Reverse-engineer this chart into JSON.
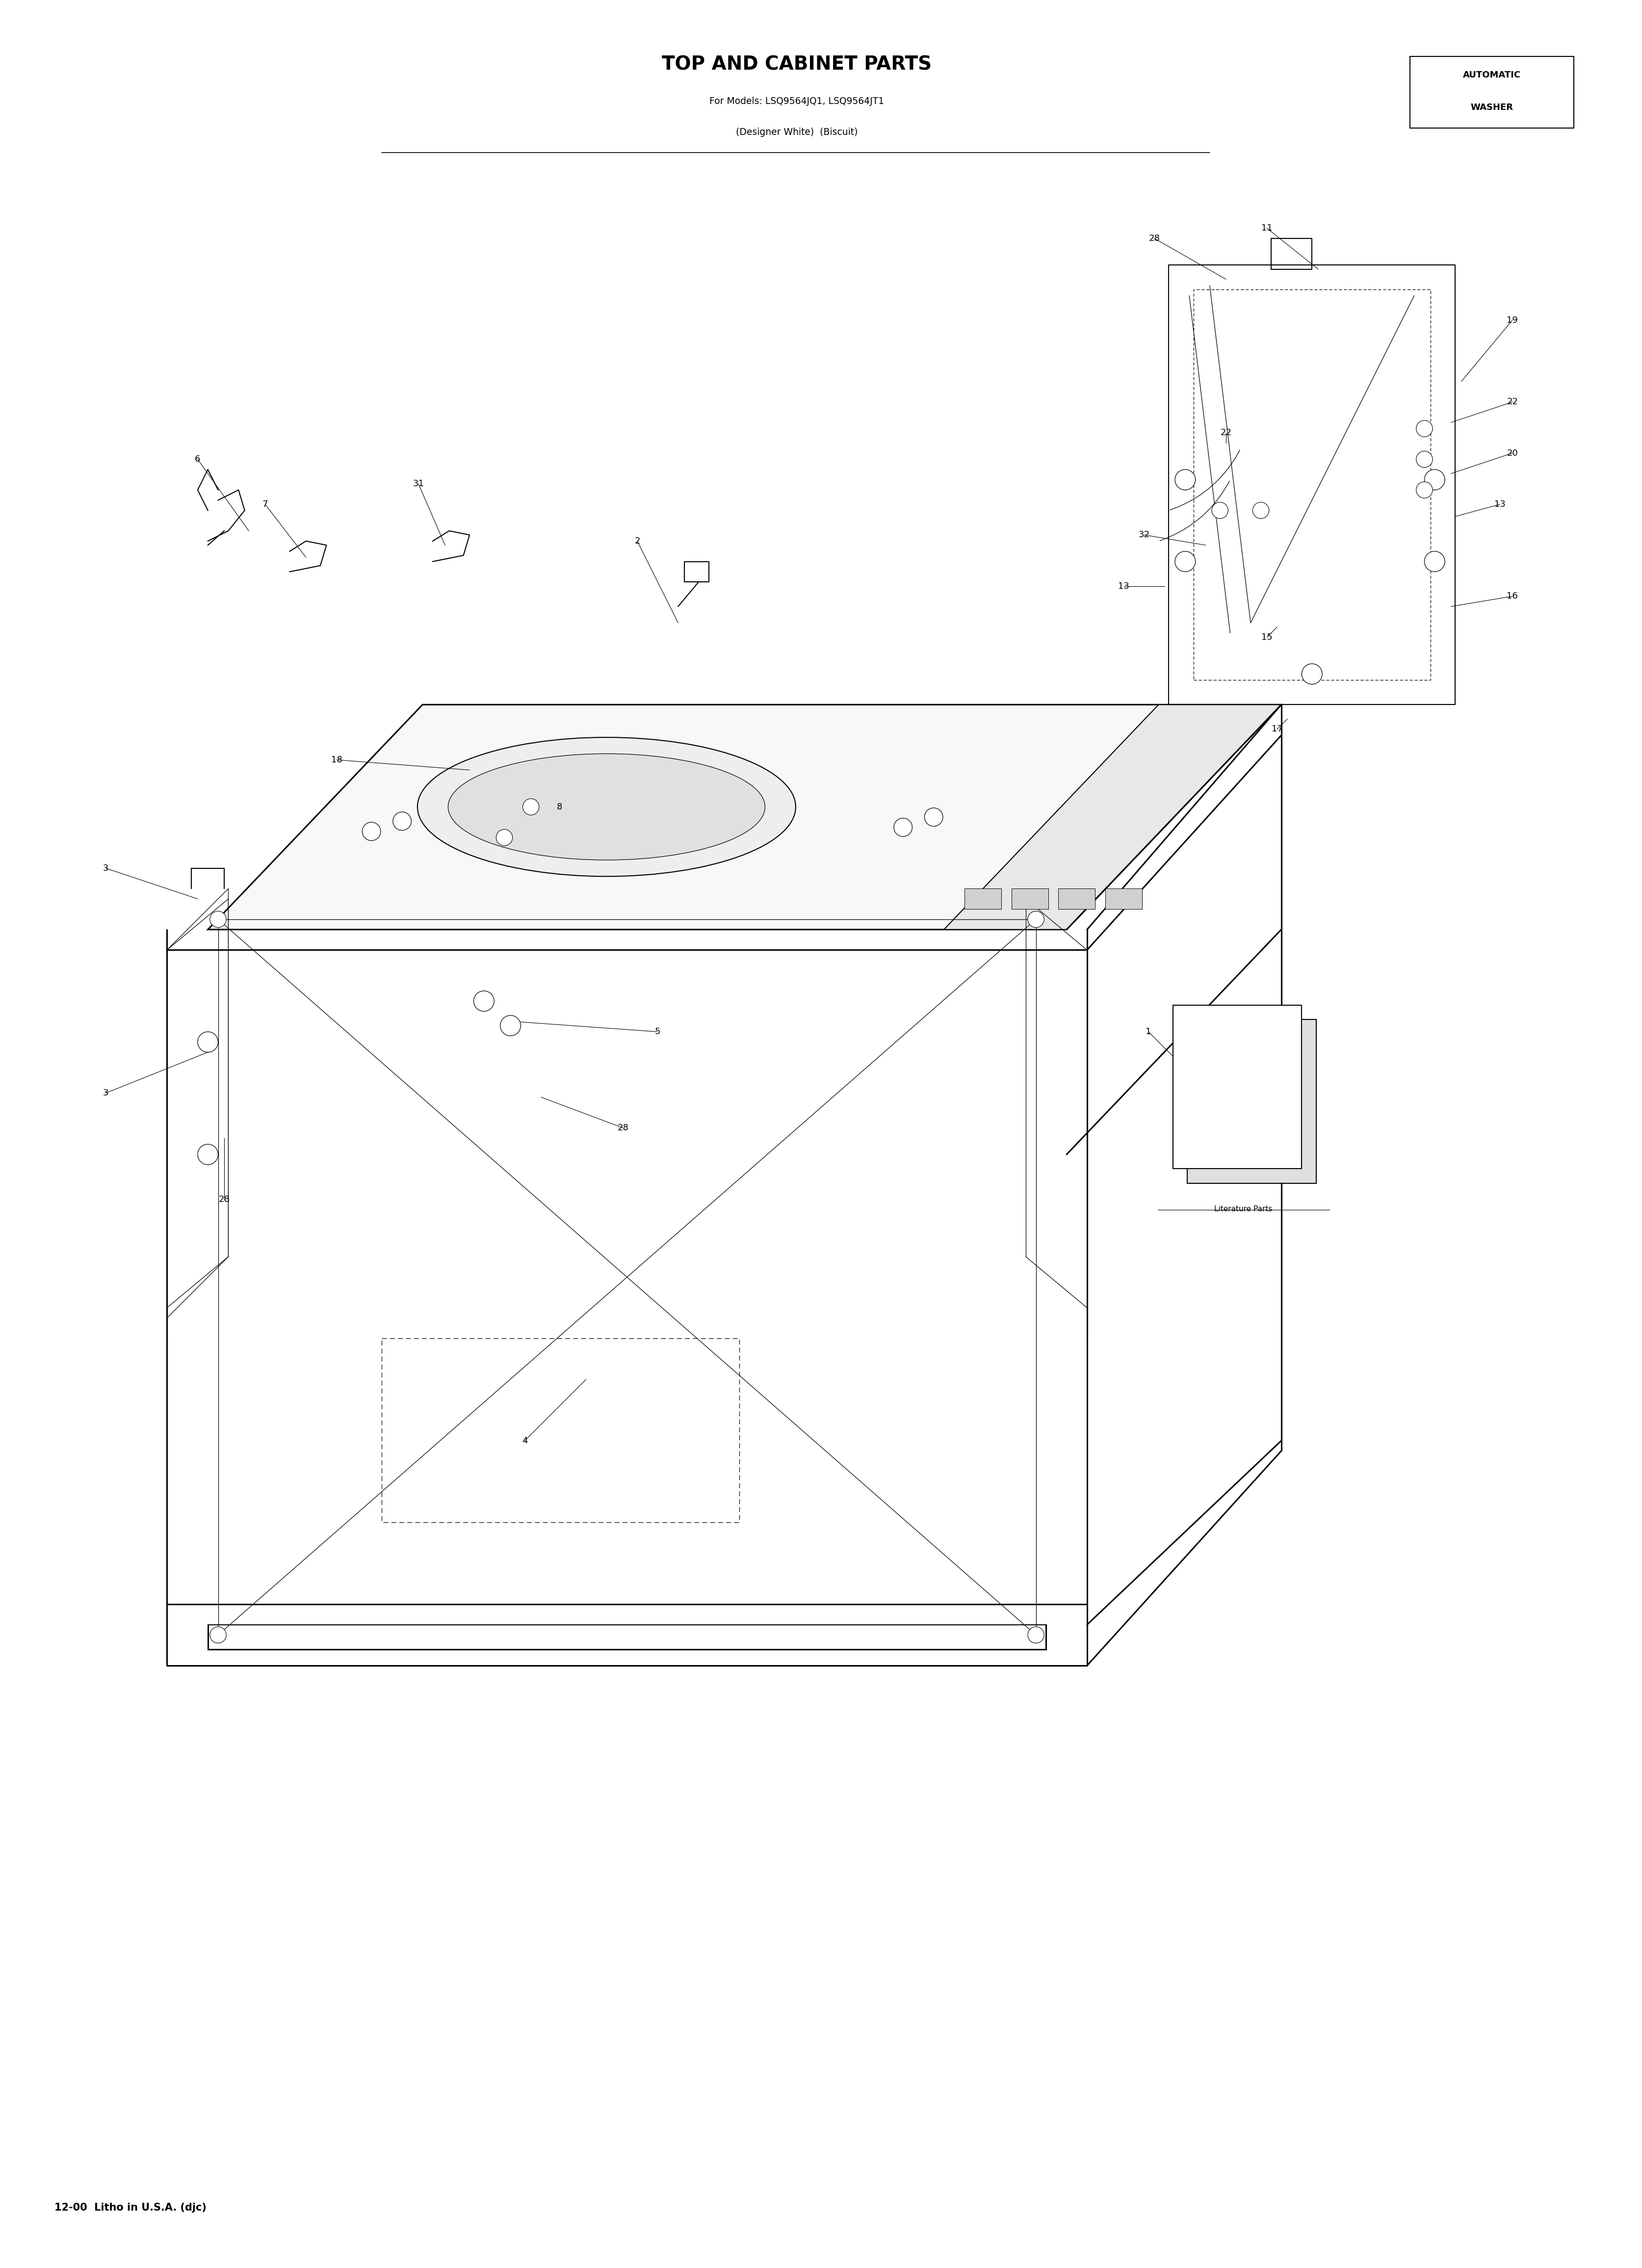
{
  "title_line1": "TOP AND CABINET PARTS",
  "title_line2": "For Models: LSQ9564JQ1, LSQ9564JT1",
  "title_line3": "(Designer White)  (Biscuit)",
  "top_right_line1": "AUTOMATIC",
  "top_right_line2": "WASHER",
  "bottom_text": "12-00  Litho in U.S.A. (djc)",
  "bg_color": "#ffffff",
  "line_color": "#000000",
  "literature_label": "Literature Parts",
  "part_labels": [
    [
      1,
      560,
      600,
      580,
      580
    ],
    [
      2,
      310,
      840,
      330,
      800
    ],
    [
      3,
      50,
      680,
      95,
      665
    ],
    [
      3,
      50,
      570,
      100,
      590
    ],
    [
      4,
      255,
      400,
      285,
      430
    ],
    [
      5,
      320,
      600,
      250,
      605
    ],
    [
      6,
      95,
      880,
      120,
      845
    ],
    [
      7,
      128,
      858,
      148,
      832
    ],
    [
      8,
      272,
      710,
      295,
      722
    ],
    [
      11,
      618,
      993,
      643,
      973
    ],
    [
      13,
      732,
      858,
      710,
      852
    ],
    [
      13,
      548,
      818,
      568,
      818
    ],
    [
      15,
      618,
      793,
      623,
      798
    ],
    [
      16,
      738,
      813,
      708,
      808
    ],
    [
      17,
      623,
      748,
      628,
      753
    ],
    [
      18,
      163,
      733,
      228,
      728
    ],
    [
      19,
      738,
      948,
      713,
      918
    ],
    [
      20,
      738,
      883,
      708,
      873
    ],
    [
      22,
      738,
      908,
      708,
      898
    ],
    [
      22,
      598,
      893,
      598,
      888
    ],
    [
      28,
      563,
      988,
      598,
      968
    ],
    [
      28,
      303,
      553,
      263,
      568
    ],
    [
      28,
      108,
      518,
      108,
      548
    ],
    [
      31,
      203,
      868,
      216,
      838
    ],
    [
      32,
      558,
      843,
      588,
      838
    ]
  ]
}
